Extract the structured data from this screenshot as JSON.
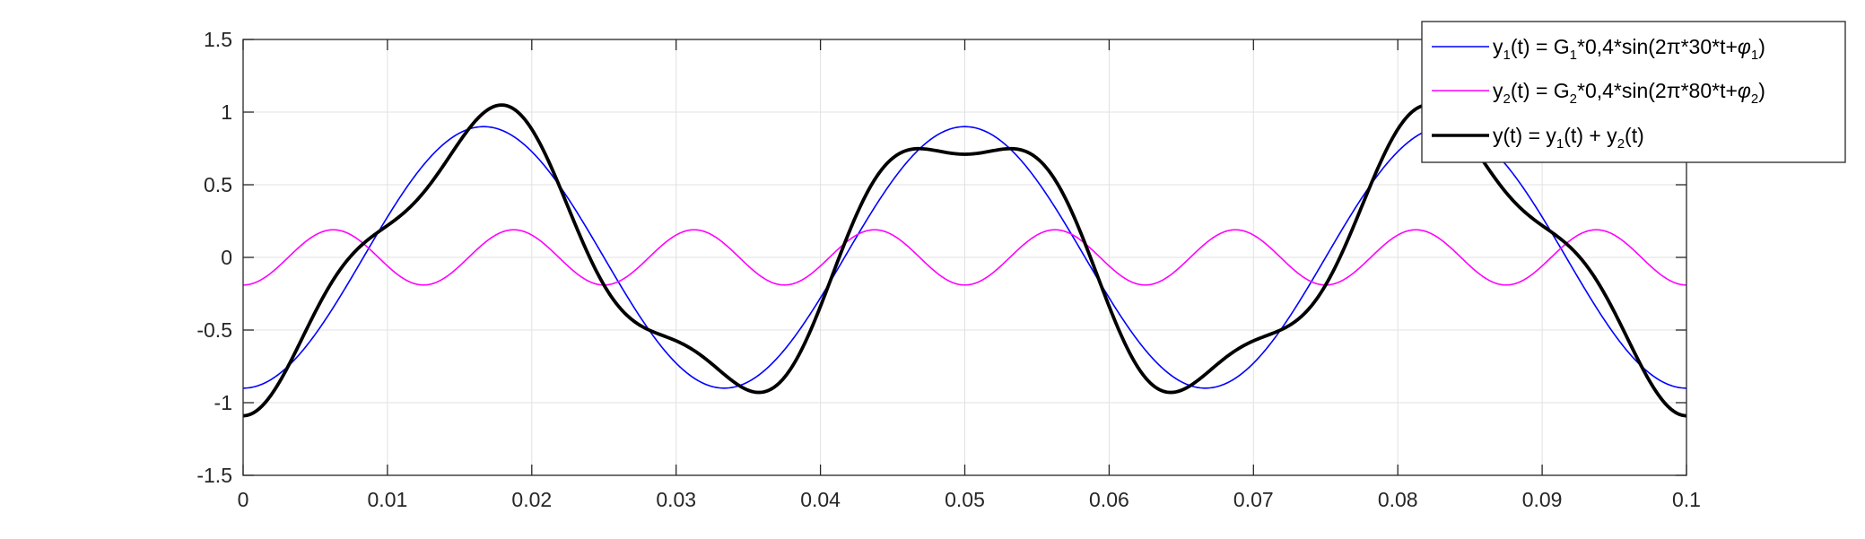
{
  "chart_data": {
    "type": "line",
    "xlim": [
      0,
      0.1
    ],
    "ylim": [
      -1.5,
      1.5
    ],
    "x_ticks": [
      "0",
      "0.01",
      "0.02",
      "0.03",
      "0.04",
      "0.05",
      "0.06",
      "0.07",
      "0.08",
      "0.09",
      "0.1"
    ],
    "y_ticks": [
      "1.5",
      "1",
      "0.5",
      "0",
      "-0.5",
      "-1",
      "-1.5"
    ],
    "grid": true,
    "legend_position": "top-right",
    "series": [
      {
        "name": "y1(t) = G1*0,4*sin(2π*30*t+φ1)",
        "color": "#0000ff",
        "amplitude": 0.9,
        "frequency_hz": 30,
        "phase_rad": -1.5708
      },
      {
        "name": "y2(t) = G2*0,4*sin(2π*80*t+φ2)",
        "color": "#ff00ff",
        "amplitude": 0.19,
        "frequency_hz": 80,
        "phase_rad": -1.5708
      },
      {
        "name": "y(t) = y1(t) + y2(t)",
        "color": "#000000",
        "sum_of_series": [
          0,
          1
        ]
      }
    ]
  }
}
